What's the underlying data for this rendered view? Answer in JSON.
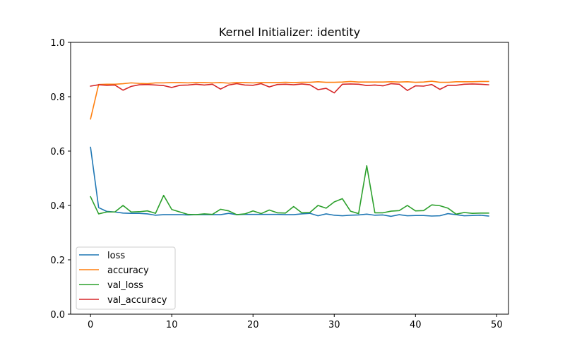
{
  "chart_data": {
    "type": "line",
    "title": "Kernel Initializer: identity",
    "xlabel": "",
    "ylabel": "",
    "xlim": [
      -2.45,
      51.45
    ],
    "ylim": [
      0.0,
      1.0
    ],
    "xticks": [
      0,
      10,
      20,
      30,
      40,
      50
    ],
    "yticks": [
      0.0,
      0.2,
      0.4,
      0.6,
      0.8,
      1.0
    ],
    "grid": false,
    "legend_position": "lower-left",
    "x": [
      0,
      1,
      2,
      3,
      4,
      5,
      6,
      7,
      8,
      9,
      10,
      11,
      12,
      13,
      14,
      15,
      16,
      17,
      18,
      19,
      20,
      21,
      22,
      23,
      24,
      25,
      26,
      27,
      28,
      29,
      30,
      31,
      32,
      33,
      34,
      35,
      36,
      37,
      38,
      39,
      40,
      41,
      42,
      43,
      44,
      45,
      46,
      47,
      48,
      49
    ],
    "series": [
      {
        "name": "loss",
        "color": "#1f77b4",
        "values": [
          0.614,
          0.392,
          0.378,
          0.376,
          0.372,
          0.371,
          0.371,
          0.369,
          0.364,
          0.366,
          0.366,
          0.366,
          0.365,
          0.366,
          0.366,
          0.366,
          0.366,
          0.371,
          0.366,
          0.367,
          0.367,
          0.367,
          0.367,
          0.367,
          0.366,
          0.366,
          0.369,
          0.371,
          0.362,
          0.369,
          0.364,
          0.362,
          0.364,
          0.365,
          0.368,
          0.364,
          0.365,
          0.36,
          0.366,
          0.362,
          0.363,
          0.363,
          0.361,
          0.362,
          0.37,
          0.366,
          0.362,
          0.363,
          0.364,
          0.361
        ]
      },
      {
        "name": "accuracy",
        "color": "#ff7f0e",
        "values": [
          0.718,
          0.845,
          0.846,
          0.846,
          0.848,
          0.851,
          0.849,
          0.848,
          0.851,
          0.851,
          0.852,
          0.852,
          0.851,
          0.852,
          0.852,
          0.851,
          0.852,
          0.85,
          0.852,
          0.852,
          0.851,
          0.852,
          0.852,
          0.852,
          0.853,
          0.852,
          0.853,
          0.853,
          0.855,
          0.853,
          0.853,
          0.854,
          0.856,
          0.854,
          0.854,
          0.854,
          0.854,
          0.855,
          0.854,
          0.855,
          0.853,
          0.854,
          0.857,
          0.853,
          0.853,
          0.855,
          0.855,
          0.855,
          0.856,
          0.856
        ]
      },
      {
        "name": "val_loss",
        "color": "#2ca02c",
        "values": [
          0.432,
          0.369,
          0.376,
          0.376,
          0.4,
          0.376,
          0.377,
          0.38,
          0.371,
          0.437,
          0.385,
          0.376,
          0.367,
          0.366,
          0.369,
          0.367,
          0.386,
          0.38,
          0.366,
          0.369,
          0.38,
          0.37,
          0.383,
          0.373,
          0.372,
          0.396,
          0.373,
          0.374,
          0.4,
          0.39,
          0.413,
          0.425,
          0.379,
          0.37,
          0.546,
          0.373,
          0.373,
          0.379,
          0.381,
          0.4,
          0.38,
          0.381,
          0.402,
          0.399,
          0.39,
          0.368,
          0.374,
          0.371,
          0.372,
          0.372
        ]
      },
      {
        "name": "val_accuracy",
        "color": "#d62728",
        "values": [
          0.839,
          0.844,
          0.842,
          0.843,
          0.824,
          0.838,
          0.844,
          0.845,
          0.843,
          0.841,
          0.834,
          0.842,
          0.843,
          0.846,
          0.843,
          0.846,
          0.828,
          0.843,
          0.848,
          0.843,
          0.842,
          0.848,
          0.836,
          0.845,
          0.846,
          0.844,
          0.847,
          0.844,
          0.826,
          0.831,
          0.814,
          0.846,
          0.847,
          0.846,
          0.841,
          0.843,
          0.84,
          0.848,
          0.846,
          0.823,
          0.84,
          0.839,
          0.845,
          0.827,
          0.842,
          0.842,
          0.846,
          0.847,
          0.846,
          0.844
        ]
      }
    ]
  }
}
